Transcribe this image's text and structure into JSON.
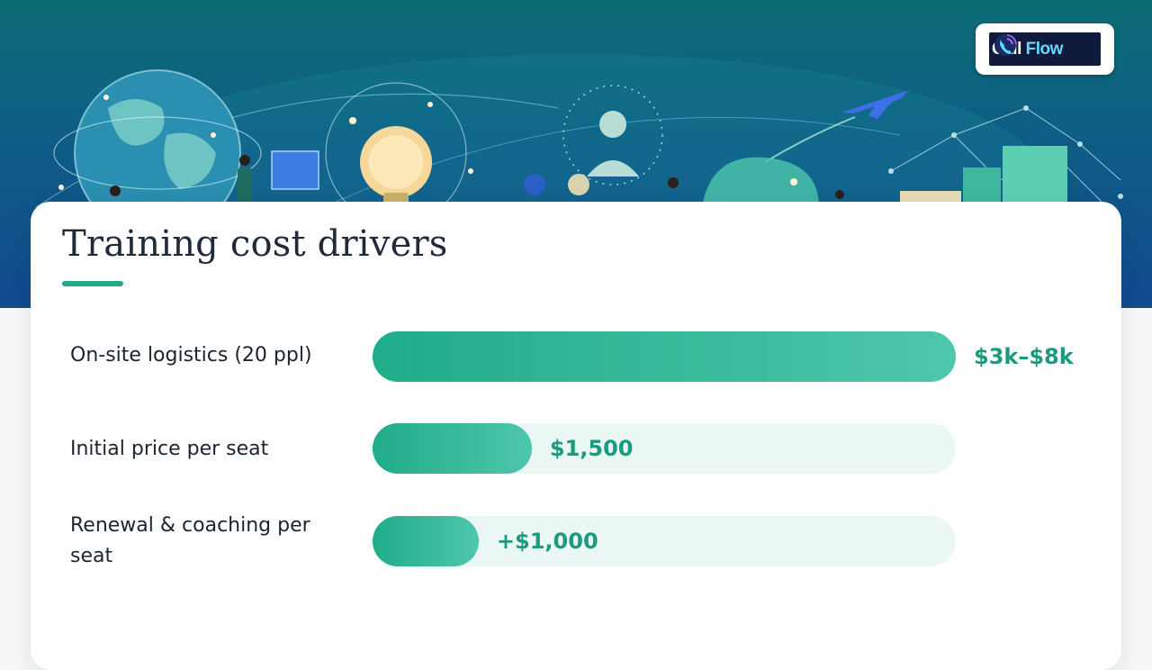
{
  "brand": {
    "logo_text_primary": "Call",
    "logo_text_accent": "Flow",
    "icon": "phone-icon"
  },
  "header": {
    "illustration_icons": [
      "globe-icon",
      "lightbulb-icon",
      "person-icon",
      "airplane-icon",
      "cube-icon",
      "network-icon"
    ]
  },
  "colors": {
    "accent": "#22a98a",
    "bar_fill": "#2cb593",
    "bar_track": "#eaf7f4",
    "value_text": "#1c9a7d",
    "hero_top": "#0b6d74",
    "hero_bottom": "#12498f"
  },
  "chart_data": {
    "type": "bar",
    "orientation": "horizontal",
    "title": "Training cost drivers",
    "categories": [
      "On-site logistics (20 ppl)",
      "Initial price per seat",
      "Renewal & coaching per seat"
    ],
    "values": [
      1.0,
      0.273,
      0.182
    ],
    "value_labels": [
      "$3k–$8k",
      "$1,500",
      "+$1,000"
    ],
    "grid": false,
    "legend": "none"
  }
}
